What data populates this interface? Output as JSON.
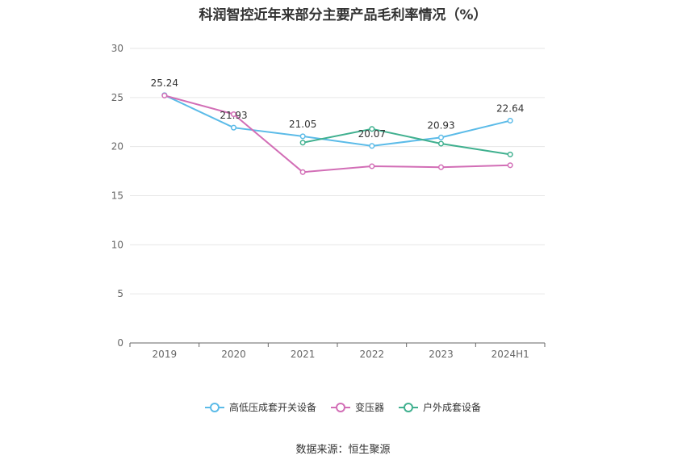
{
  "chart_data": {
    "type": "line",
    "title": "科润智控近年来部分主要产品毛利率情况（%）",
    "categories": [
      "2019",
      "2020",
      "2021",
      "2022",
      "2023",
      "2024H1"
    ],
    "ylim": [
      0,
      30
    ],
    "yticks": [
      0,
      5,
      10,
      15,
      20,
      25,
      30
    ],
    "grid": true,
    "legend_position": "bottom",
    "series": [
      {
        "name": "高低压成套开关设备",
        "color": "#5bbbe8",
        "values": [
          25.24,
          21.93,
          21.05,
          20.07,
          20.93,
          22.64
        ],
        "labels": [
          "25.24",
          "21.93",
          "21.05",
          "20.07",
          "20.93",
          "22.64"
        ]
      },
      {
        "name": "变压器",
        "color": "#d26eb6",
        "values": [
          25.2,
          23.3,
          17.4,
          18.0,
          17.9,
          18.1
        ]
      },
      {
        "name": "户外成套设备",
        "color": "#40b08f",
        "values": [
          null,
          null,
          20.4,
          21.8,
          20.3,
          19.2
        ]
      }
    ]
  },
  "source": "数据来源：恒生聚源"
}
